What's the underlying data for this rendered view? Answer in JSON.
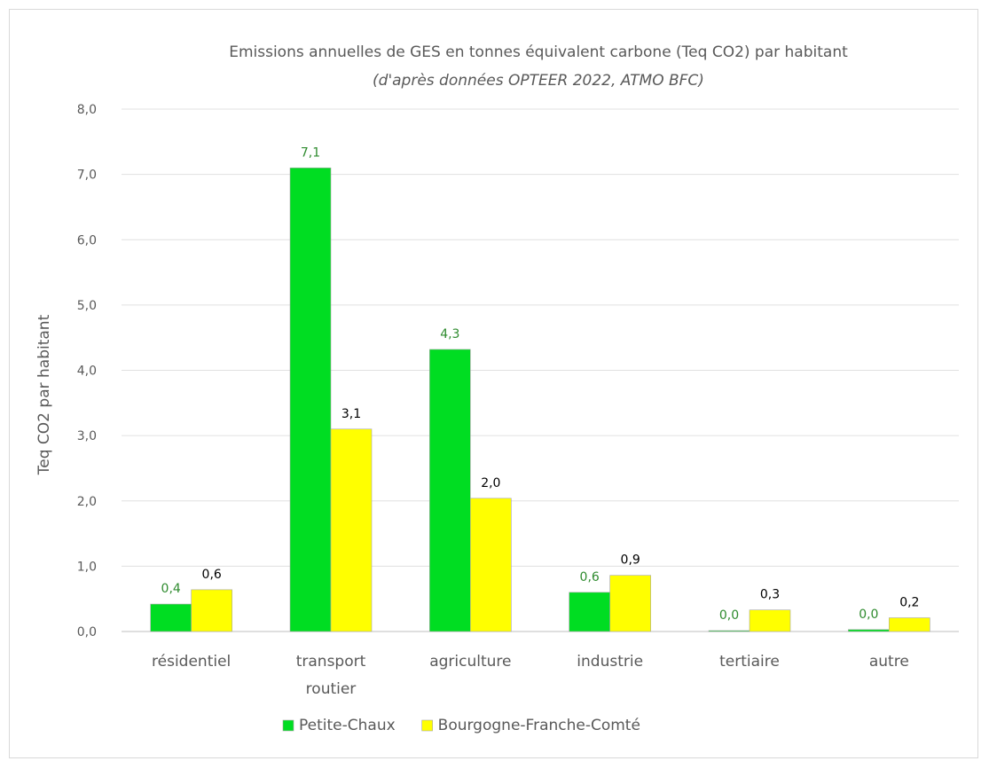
{
  "chart_data": {
    "type": "bar",
    "title": "Emissions annuelles de GES en tonnes équivalent carbone (Teq CO2) par habitant",
    "subtitle": "(d'après données OPTEER 2022, ATMO BFC)",
    "xlabel": "",
    "ylabel": "Teq CO2 par habitant",
    "ylim": [
      0,
      8
    ],
    "y_tick_step": 1,
    "y_tick_labels": [
      "0,0",
      "1,0",
      "2,0",
      "3,0",
      "4,0",
      "5,0",
      "6,0",
      "7,0",
      "8,0"
    ],
    "grid": true,
    "legend_position": "bottom",
    "categories": [
      [
        "résidentiel"
      ],
      [
        "transport",
        "routier"
      ],
      [
        "agriculture"
      ],
      [
        "industrie"
      ],
      [
        "tertiaire"
      ],
      [
        "autre"
      ]
    ],
    "series": [
      {
        "name": "Petite-Chaux",
        "color": "#00dd22",
        "label_color": "#2e8b2e",
        "values": [
          0.42,
          7.1,
          4.32,
          0.6,
          0.01,
          0.03
        ],
        "labels": [
          "0,4",
          "7,1",
          "4,3",
          "0,6",
          "0,0",
          "0,0"
        ]
      },
      {
        "name": "Bourgogne-Franche-Comté",
        "color": "#ffff00",
        "label_color": "#000000",
        "values": [
          0.64,
          3.1,
          2.04,
          0.86,
          0.33,
          0.21
        ],
        "labels": [
          "0,6",
          "3,1",
          "2,0",
          "0,9",
          "0,3",
          "0,2"
        ]
      }
    ]
  }
}
